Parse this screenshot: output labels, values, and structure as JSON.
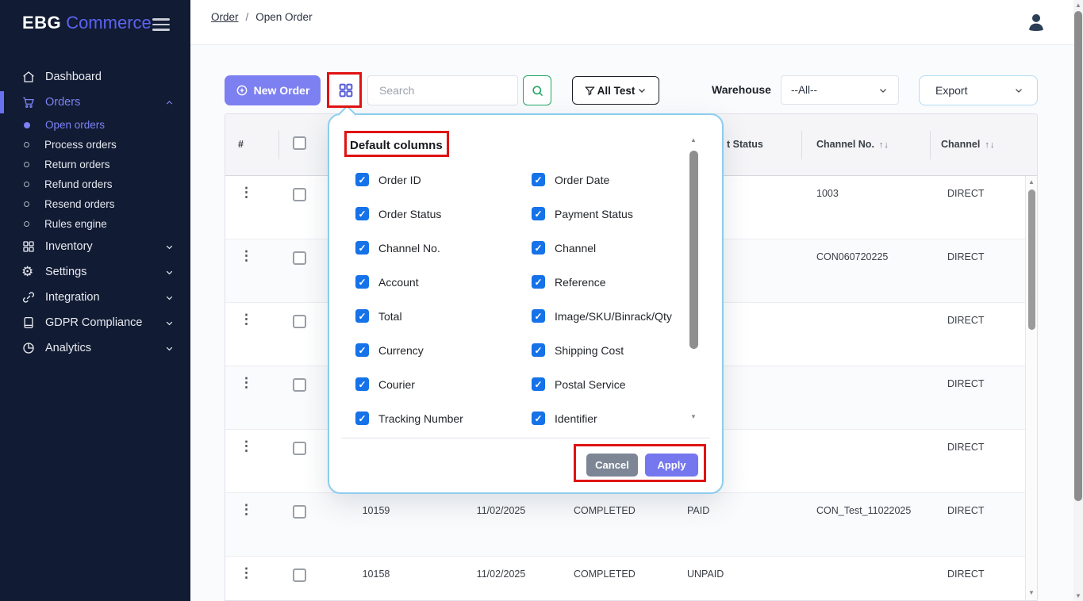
{
  "brand": {
    "bold": "EBG",
    "light": "Commerce"
  },
  "topbar": {
    "breadcrumb_link": "Order",
    "breadcrumb_separator": "/",
    "breadcrumb_current": "Open Order"
  },
  "sidebar": {
    "items": [
      {
        "label": "Dashboard",
        "icon": "home-icon",
        "type": "item"
      },
      {
        "label": "Orders",
        "icon": "cart-icon",
        "type": "item",
        "active": true,
        "chevron": "up"
      },
      {
        "label": "Open orders",
        "icon": "dot-filled-icon",
        "type": "sub",
        "active": true
      },
      {
        "label": "Process orders",
        "icon": "dot-icon",
        "type": "sub"
      },
      {
        "label": "Return orders",
        "icon": "dot-icon",
        "type": "sub"
      },
      {
        "label": "Refund orders",
        "icon": "dot-icon",
        "type": "sub"
      },
      {
        "label": "Resend orders",
        "icon": "dot-icon",
        "type": "sub"
      },
      {
        "label": "Rules engine",
        "icon": "dot-icon",
        "type": "sub"
      },
      {
        "label": "Inventory",
        "icon": "grid-icon",
        "type": "item",
        "chevron": "down"
      },
      {
        "label": "Settings",
        "icon": "gear-icon",
        "type": "item",
        "chevron": "down"
      },
      {
        "label": "Integration",
        "icon": "link-icon",
        "type": "item",
        "chevron": "down"
      },
      {
        "label": "GDPR Compliance",
        "icon": "doc-icon",
        "type": "item",
        "chevron": "down"
      },
      {
        "label": "Analytics",
        "icon": "pie-icon",
        "type": "item",
        "chevron": "down"
      }
    ]
  },
  "toolbar": {
    "new_order_label": "New Order",
    "search_placeholder": "Search",
    "filter_label": "All Test",
    "warehouse_label": "Warehouse",
    "warehouse_value": "--All--",
    "export_label": "Export"
  },
  "table": {
    "header": {
      "index": "#",
      "payment_status_fragment": "t Status",
      "channel_no_label": "Channel No.",
      "channel_label": "Channel",
      "sort_indicator": "↑↓"
    },
    "rows": [
      {
        "order_id": "",
        "order_date": "",
        "order_status": "",
        "payment_status": "",
        "channel_no": "1003",
        "channel": "DIRECT"
      },
      {
        "order_id": "",
        "order_date": "",
        "order_status": "",
        "payment_status": "",
        "channel_no": "CON060720225",
        "channel": "DIRECT"
      },
      {
        "order_id": "",
        "order_date": "",
        "order_status": "",
        "payment_status": "",
        "channel_no": "",
        "channel": "DIRECT"
      },
      {
        "order_id": "",
        "order_date": "",
        "order_status": "",
        "payment_status": "",
        "channel_no": "",
        "channel": "DIRECT"
      },
      {
        "order_id": "",
        "order_date": "",
        "order_status": "",
        "payment_status": "",
        "channel_no": "",
        "channel": "DIRECT"
      },
      {
        "order_id": "10159",
        "order_date": "11/02/2025",
        "order_status": "COMPLETED",
        "payment_status": "PAID",
        "channel_no": "CON_Test_11022025",
        "channel": "DIRECT"
      },
      {
        "order_id": "10158",
        "order_date": "11/02/2025",
        "order_status": "COMPLETED",
        "payment_status": "UNPAID",
        "channel_no": "",
        "channel": "DIRECT"
      }
    ]
  },
  "modal": {
    "title": "Default columns",
    "all_checked": true,
    "options": [
      "Order ID",
      "Order Date",
      "Order Status",
      "Payment Status",
      "Channel No.",
      "Channel",
      "Account",
      "Reference",
      "Total",
      "Image/SKU/Binrack/Qty",
      "Currency",
      "Shipping Cost",
      "Courier",
      "Postal Service",
      "Tracking Number",
      "Identifier"
    ],
    "cancel_label": "Cancel",
    "apply_label": "Apply"
  },
  "colors": {
    "accent_purple": "#7d80f0",
    "sidebar_bg": "#111b33",
    "checkbox_blue": "#1572e8",
    "annotation_red": "#e01313",
    "modal_border": "#8ccdee",
    "search_green": "#22a565"
  }
}
